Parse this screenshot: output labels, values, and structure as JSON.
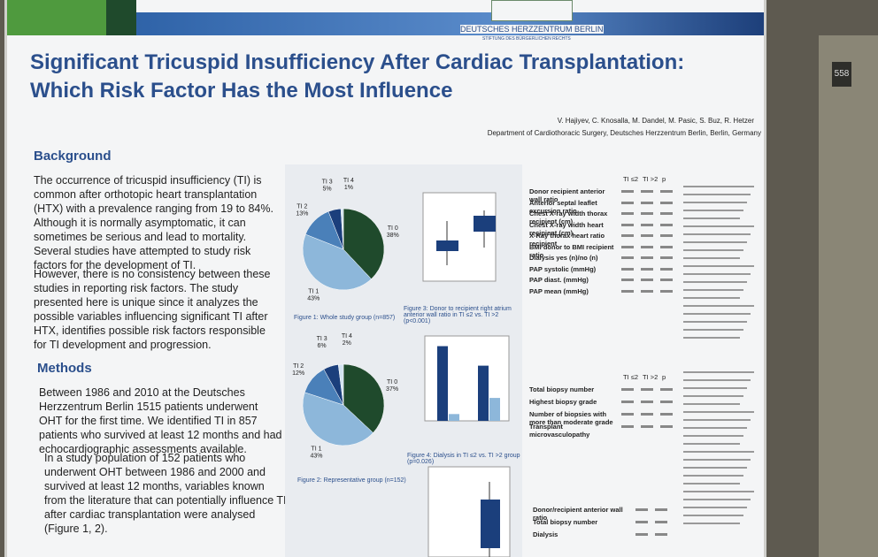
{
  "header": {
    "institution": "DEUTSCHES HERZZENTRUM BERLIN",
    "institution_sub": "STIFTUNG DES BÜRGERLICHEN RECHTS",
    "title_line1": "Significant Tricuspid Insufficiency After Cardiac Transplantation:",
    "title_line2": "Which Risk Factor Has the Most Influence",
    "authors": "V. Hajiyev, C. Knosalla, M. Dandel, M. Pasic, S. Buz, R. Hetzer",
    "affiliation": "Department of Cardiothoracic Surgery, Deutsches Herzzentrum Berlin, Berlin, Germany"
  },
  "background": {
    "heading": "Background",
    "paragraphs": [
      "The occurrence of tricuspid insufficiency (TI) is common after orthotopic heart transplantation (HTX) with a prevalence ranging from 19 to 84%. Although it is normally asymptomatic, it can sometimes be serious and lead to mortality. Several studies have attempted to study risk factors for the development of TI.",
      "However, there is no consistency between these studies in reporting risk factors. The study presented here is unique since it analyzes the possible variables influencing significant TI after HTX, identifies possible risk factors responsible for TI development and progression."
    ]
  },
  "methods": {
    "heading": "Methods",
    "paragraphs": [
      "Between 1986 and 2010 at the Deutsches Herzzentrum Berlin 1515 patients underwent OHT for the first time. We identified TI in 857 patients who survived at least 12 months and had echocardiographic assessments available.",
      "In a study population of 152 patients who underwent OHT between 1986 and 2000 and survived at least 12 months, variables known from the literature that can potentially influence TI after cardiac transplantation were analysed (Figure 1, 2)."
    ]
  },
  "pies": [
    {
      "caption": "Figure 1: Whole study group (n=857)",
      "slices": [
        {
          "label": "TI 0",
          "value": 38,
          "value_label": "38%",
          "color": "#1f4a2c"
        },
        {
          "label": "TI 1",
          "value": 43,
          "value_label": "43%",
          "color": "#8db7da"
        },
        {
          "label": "TI 2",
          "value": 13,
          "value_label": "13%",
          "color": "#4a80b9"
        },
        {
          "label": "TI 3",
          "value": 5,
          "value_label": "5%",
          "color": "#1b3f7c"
        },
        {
          "label": "TI 4",
          "value": 1,
          "value_label": "1%",
          "color": "#d3e3f0"
        }
      ]
    },
    {
      "caption": "Figure 2: Representative group (n=152)",
      "slices": [
        {
          "label": "TI 0",
          "value": 37,
          "value_label": "37%",
          "color": "#1f4a2c"
        },
        {
          "label": "TI 1",
          "value": 43,
          "value_label": "43%",
          "color": "#8db7da"
        },
        {
          "label": "TI 2",
          "value": 12,
          "value_label": "12%",
          "color": "#4a80b9"
        },
        {
          "label": "TI 3",
          "value": 6,
          "value_label": "6%",
          "color": "#1b3f7c"
        },
        {
          "label": "TI 4",
          "value": 2,
          "value_label": "2%",
          "color": "#d3e3f0"
        }
      ]
    }
  ],
  "figure3": {
    "caption": "Figure 3: Donor to recipient right atrium anterior wall ratio in TI ≤2 vs. TI >2 (p<0.001)"
  },
  "figure4": {
    "caption": "Figure 4: Dialysis in TI ≤2 vs. TI >2 group (p=0.026)",
    "ylim": [
      0,
      100
    ],
    "series": [
      {
        "color": "#1b3f7c",
        "values": [
          88,
          65
        ]
      },
      {
        "color": "#8db7da",
        "values": [
          8,
          27
        ]
      }
    ]
  },
  "table1": {
    "columns": [
      "TI ≤2",
      "TI >2",
      "p"
    ],
    "rows": [
      "Donor recipient anterior wall ratio",
      "Anterior septal leaflet excursion ratio",
      "Chest X-ray width thorax recipient (cm)",
      "Chest X-ray width heart recipient (cm)",
      "X-Ray thorax heart ratio recipient",
      "BMI donor to BMI recipient ratio",
      "Dialysis yes (n)/no (n)",
      "PAP systolic (mmHg)",
      "PAP diast. (mmHg)",
      "PAP mean (mmHg)"
    ]
  },
  "table2": {
    "columns": [
      "TI ≤2",
      "TI >2",
      "p"
    ],
    "rows": [
      "Total biopsy number",
      "Highest biopsy grade",
      "Number of biopsies with more than moderate grade",
      "Transplant microvasculopathy"
    ]
  },
  "table3": {
    "rows": [
      "Donor/recipient anterior wall ratio",
      "Total biopsy number",
      "Dialysis"
    ]
  },
  "booth": "558"
}
